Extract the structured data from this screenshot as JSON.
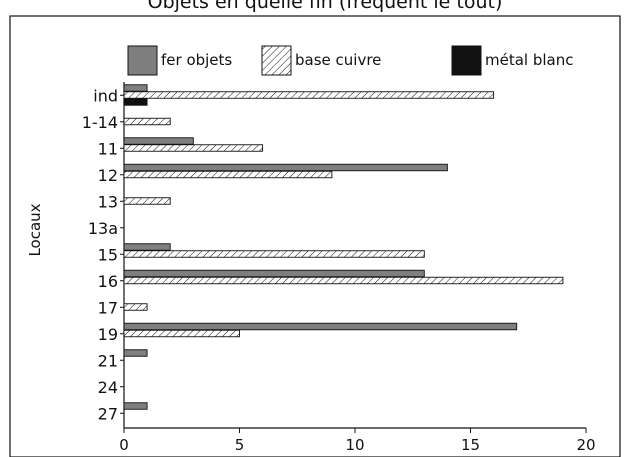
{
  "chart_data": {
    "type": "bar",
    "orientation": "horizontal",
    "title": "Objets en quelle fin (frequent le tout)",
    "ylabel": "Locaux",
    "xlabel": "",
    "xlim": [
      0,
      20
    ],
    "xticks": [
      0,
      5,
      10,
      15,
      20
    ],
    "categories": [
      "ind",
      "1-14",
      "11",
      "12",
      "13",
      "13a",
      "15",
      "16",
      "17",
      "19",
      "21",
      "24",
      "27"
    ],
    "series": [
      {
        "name": "fer objets",
        "values": [
          1,
          0,
          3,
          14,
          0,
          0,
          2,
          13,
          0,
          17,
          1,
          0,
          1
        ],
        "color": "#7f7f7f",
        "pattern": "solid"
      },
      {
        "name": "base cuivre",
        "values": [
          16,
          2,
          6,
          9,
          2,
          0,
          13,
          19,
          1,
          5,
          0,
          0,
          0
        ],
        "color": "#ffffff",
        "pattern": "hatch"
      },
      {
        "name": "métal blanc",
        "values": [
          1,
          0,
          0,
          0,
          0,
          0,
          0,
          0,
          0,
          0,
          0,
          0,
          0
        ],
        "color": "#111111",
        "pattern": "solid"
      }
    ],
    "legend_position": "top",
    "grid": false
  }
}
